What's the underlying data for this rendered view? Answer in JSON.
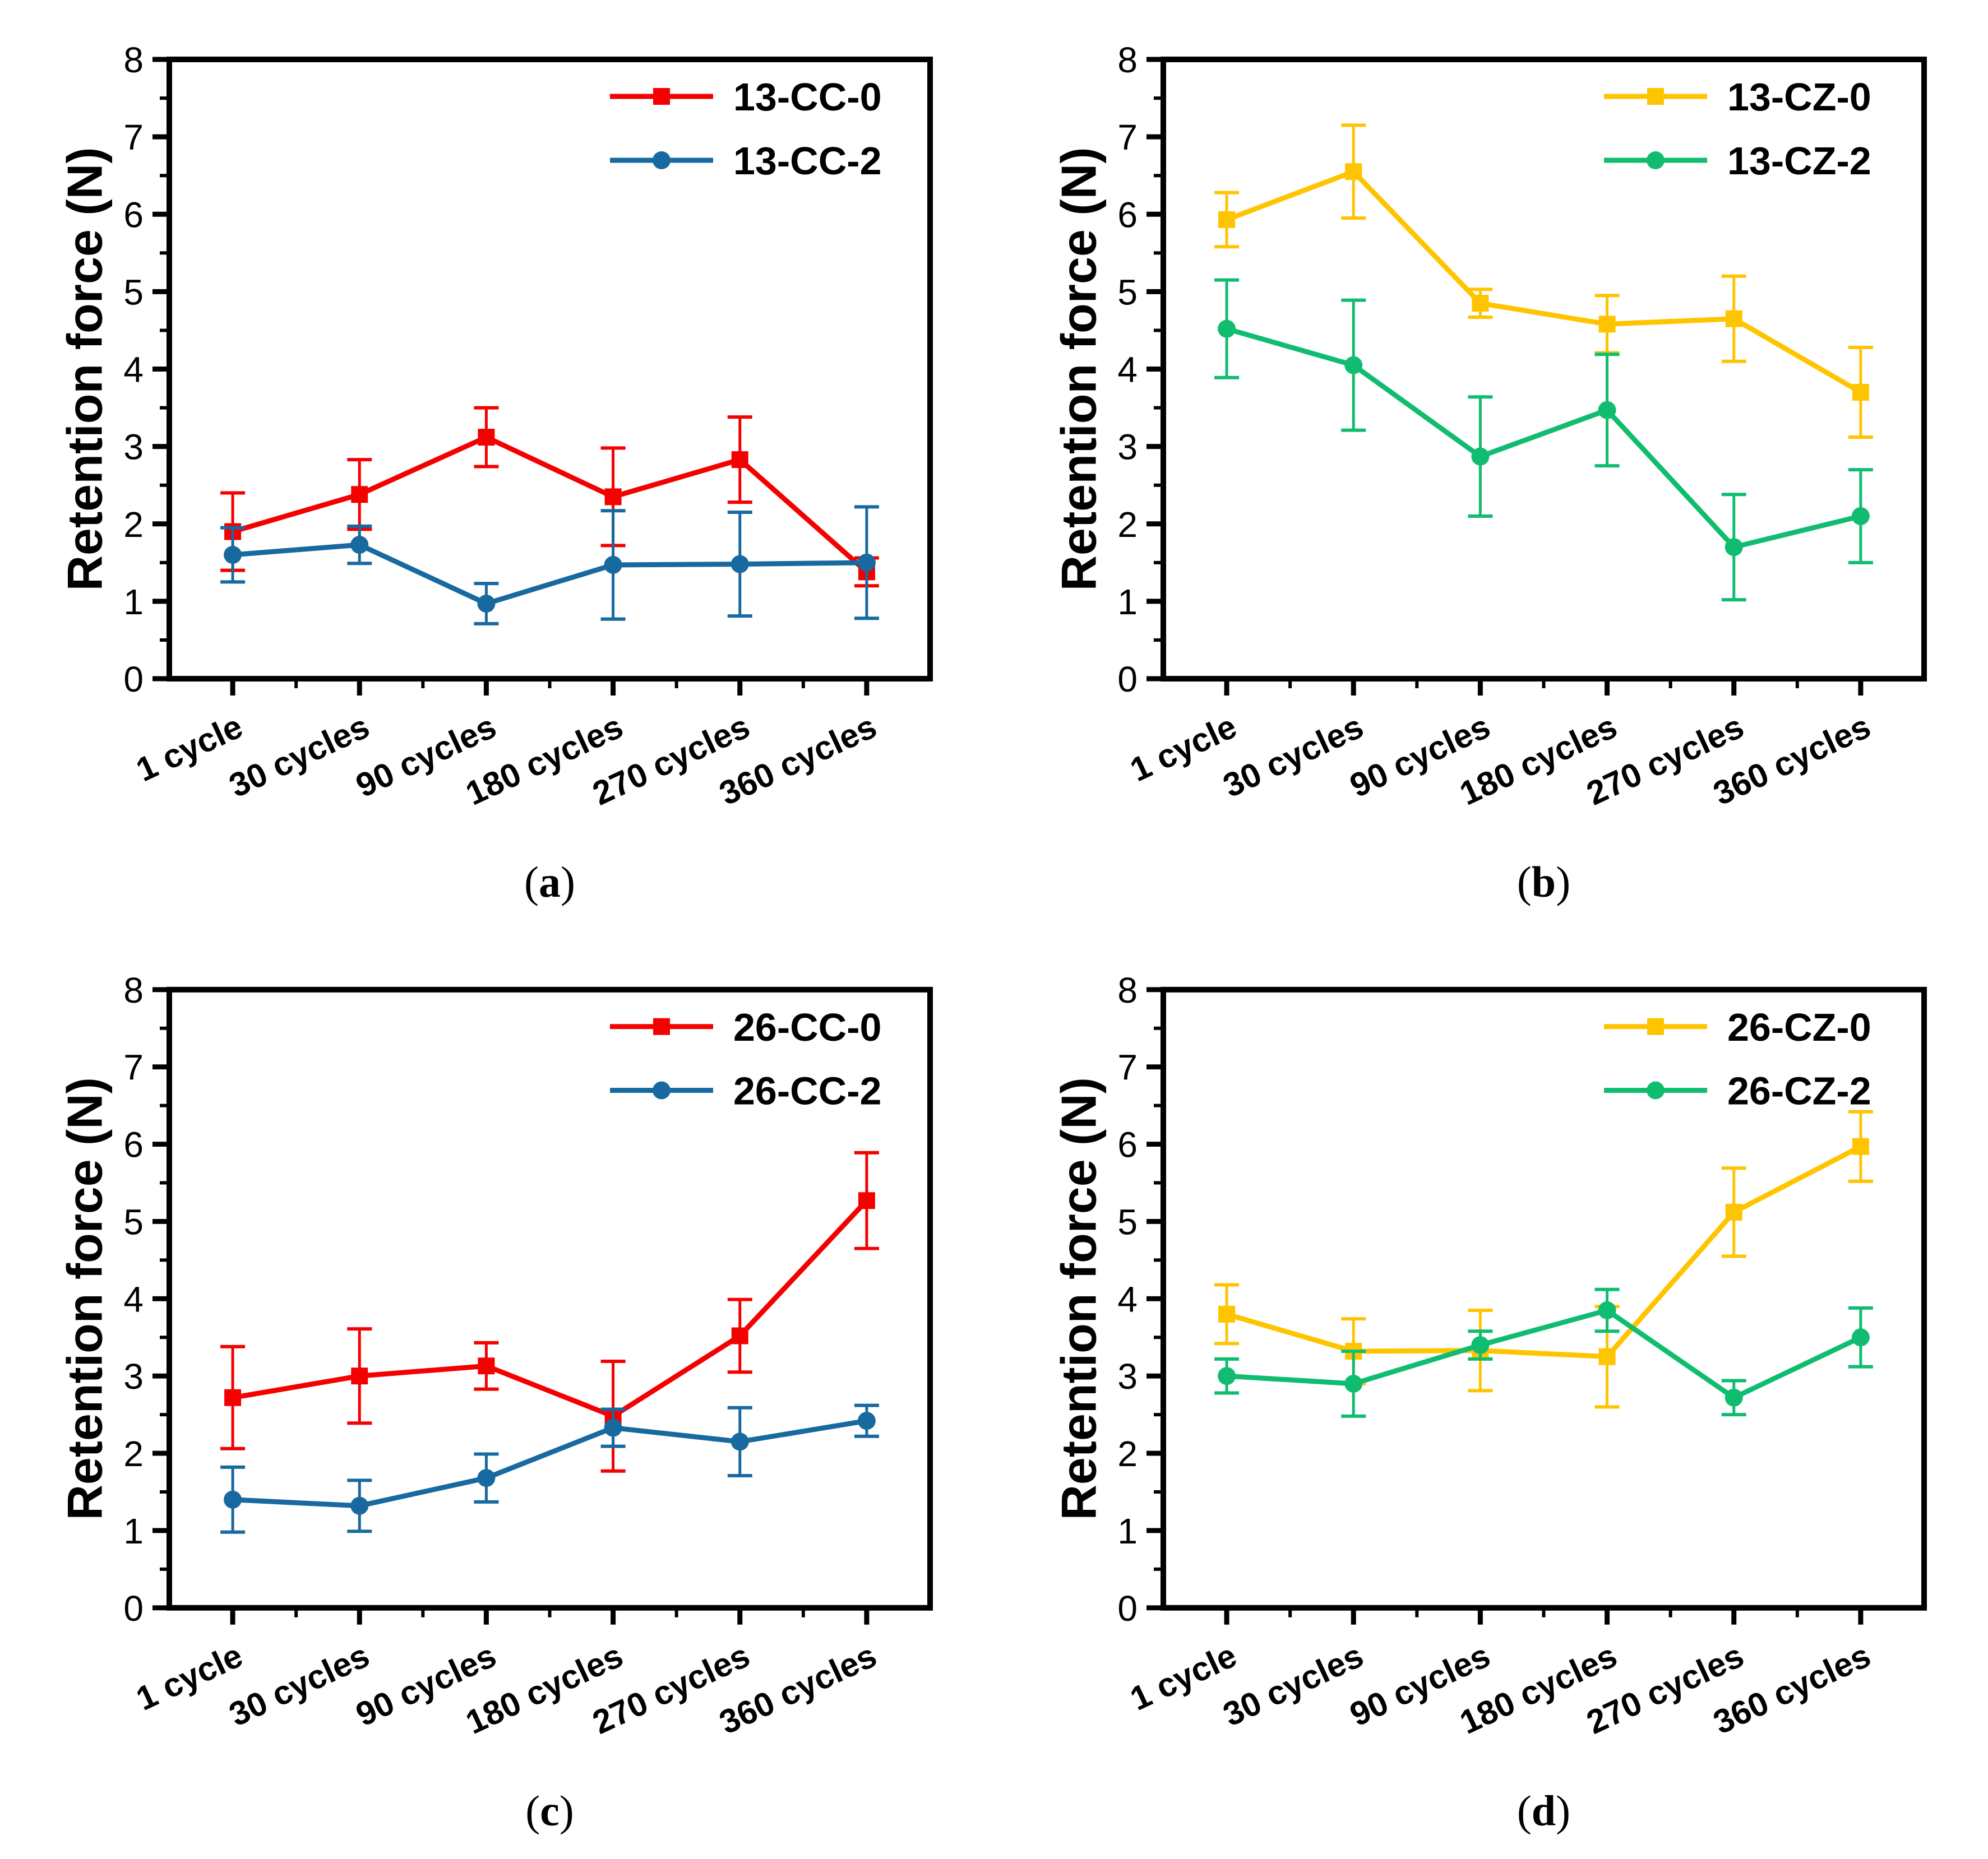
{
  "page": {
    "background": "#ffffff"
  },
  "figure": {
    "ylabel": "Retention force (N)",
    "categories": [
      "1 cycle",
      "30 cycles",
      "90 cycles",
      "180 cycles",
      "270 cycles",
      "360 cycles"
    ],
    "yticks": [
      0,
      1,
      2,
      3,
      4,
      5,
      6,
      7,
      8
    ],
    "axis_color": "#000000"
  },
  "chart_data": [
    {
      "type": "line",
      "title": "",
      "xlabel": "",
      "ylabel": "Retention force (N)",
      "ylim": [
        0,
        8
      ],
      "grid": false,
      "legend_position": "top-right",
      "caption": {
        "open": "(",
        "letter": "a",
        "close": ")"
      },
      "categories": [
        "1 cycle",
        "30 cycles",
        "90 cycles",
        "180 cycles",
        "270 cycles",
        "360 cycles"
      ],
      "yticks": [
        0,
        1,
        2,
        3,
        4,
        5,
        6,
        7,
        8
      ],
      "series": [
        {
          "name": "13-CC-0",
          "color": "#F40000",
          "marker": "square",
          "values": [
            1.9,
            2.38,
            3.12,
            2.35,
            2.83,
            1.38
          ],
          "errors": [
            0.5,
            0.45,
            0.38,
            0.63,
            0.55,
            0.18
          ]
        },
        {
          "name": "13-CC-2",
          "color": "#17699F",
          "marker": "circle",
          "values": [
            1.6,
            1.73,
            0.97,
            1.47,
            1.48,
            1.5
          ],
          "errors": [
            0.35,
            0.24,
            0.26,
            0.7,
            0.67,
            0.72
          ]
        }
      ]
    },
    {
      "type": "line",
      "title": "",
      "xlabel": "",
      "ylabel": "Retention force (N)",
      "ylim": [
        0,
        8
      ],
      "grid": false,
      "legend_position": "top-right",
      "caption": {
        "open": "(",
        "letter": "b",
        "close": ")"
      },
      "categories": [
        "1 cycle",
        "30 cycles",
        "90 cycles",
        "180 cycles",
        "270 cycles",
        "360 cycles"
      ],
      "yticks": [
        0,
        1,
        2,
        3,
        4,
        5,
        6,
        7,
        8
      ],
      "series": [
        {
          "name": "13-CZ-0",
          "color": "#FFC400",
          "marker": "square",
          "values": [
            5.93,
            6.55,
            4.85,
            4.58,
            4.65,
            3.7
          ],
          "errors": [
            0.35,
            0.6,
            0.18,
            0.37,
            0.55,
            0.58
          ]
        },
        {
          "name": "13-CZ-2",
          "color": "#10BD70",
          "marker": "circle",
          "values": [
            4.52,
            4.05,
            2.87,
            3.47,
            1.7,
            2.1
          ],
          "errors": [
            0.63,
            0.84,
            0.77,
            0.72,
            0.68,
            0.6
          ]
        }
      ]
    },
    {
      "type": "line",
      "title": "",
      "xlabel": "",
      "ylabel": "Retention force (N)",
      "ylim": [
        0,
        8
      ],
      "grid": false,
      "legend_position": "top-right",
      "caption": {
        "open": "(",
        "letter": "c",
        "close": ")"
      },
      "categories": [
        "1 cycle",
        "30 cycles",
        "90 cycles",
        "180 cycles",
        "270 cycles",
        "360 cycles"
      ],
      "yticks": [
        0,
        1,
        2,
        3,
        4,
        5,
        6,
        7,
        8
      ],
      "series": [
        {
          "name": "26-CC-0",
          "color": "#F40000",
          "marker": "square",
          "values": [
            2.72,
            3.0,
            3.13,
            2.48,
            3.52,
            5.27
          ],
          "errors": [
            0.66,
            0.61,
            0.3,
            0.71,
            0.47,
            0.62
          ]
        },
        {
          "name": "26-CC-2",
          "color": "#17699F",
          "marker": "circle",
          "values": [
            1.4,
            1.32,
            1.68,
            2.33,
            2.15,
            2.42
          ],
          "errors": [
            0.42,
            0.33,
            0.31,
            0.24,
            0.44,
            0.2
          ]
        }
      ]
    },
    {
      "type": "line",
      "title": "",
      "xlabel": "",
      "ylabel": "Retention force (N)",
      "ylim": [
        0,
        8
      ],
      "grid": false,
      "legend_position": "top-right",
      "caption": {
        "open": "(",
        "letter": "d",
        "close": ")"
      },
      "categories": [
        "1 cycle",
        "30 cycles",
        "90 cycles",
        "180 cycles",
        "270 cycles",
        "360 cycles"
      ],
      "yticks": [
        0,
        1,
        2,
        3,
        4,
        5,
        6,
        7,
        8
      ],
      "series": [
        {
          "name": "26-CZ-0",
          "color": "#FFC400",
          "marker": "square",
          "values": [
            3.8,
            3.32,
            3.33,
            3.25,
            5.12,
            5.97
          ],
          "errors": [
            0.38,
            0.42,
            0.52,
            0.65,
            0.57,
            0.45
          ]
        },
        {
          "name": "26-CZ-2",
          "color": "#10BD70",
          "marker": "circle",
          "values": [
            3.0,
            2.9,
            3.4,
            3.85,
            2.72,
            3.5
          ],
          "errors": [
            0.22,
            0.42,
            0.18,
            0.27,
            0.22,
            0.38
          ]
        }
      ]
    }
  ]
}
